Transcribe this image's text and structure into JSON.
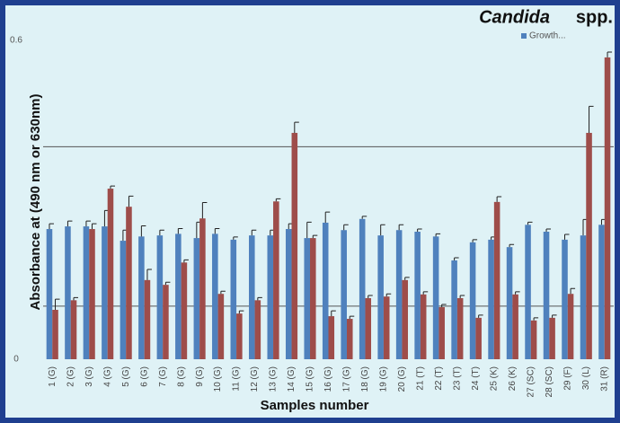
{
  "chart_data": {
    "type": "bar",
    "title": {
      "italic": "Candida",
      "text": "spp."
    },
    "y_label": "Absorbance at (490 nm or 630nm)",
    "x_label": "Samples number",
    "categories": [
      "1 (G)",
      "2 (G)",
      "3 (G)",
      "4 (G)",
      "5 (G)",
      "6 (G)",
      "7 (G)",
      "8 (G)",
      "9 (G)",
      "10 (G)",
      "11 (G)",
      "12 (G)",
      "13 (G)",
      "14 (G)",
      "15 (G)",
      "16 (G)",
      "17 (G)",
      "18 (G)",
      "19 (G)",
      "20 (G)",
      "21 (T)",
      "22 (T)",
      "23 (T)",
      "24 (T)",
      "25 (K)",
      "26 (K)",
      "27 (SC)",
      "28 (SC)",
      "29 (F)",
      "30 (L)",
      "31 (R)"
    ],
    "series": [
      {
        "name": "Growth...",
        "color": "#4f81bd",
        "values": [
          0.245,
          0.25,
          0.25,
          0.25,
          0.223,
          0.231,
          0.233,
          0.236,
          0.228,
          0.236,
          0.225,
          0.233,
          0.233,
          0.245,
          0.228,
          0.257,
          0.243,
          0.264,
          0.233,
          0.243,
          0.24,
          0.231,
          0.186,
          0.22,
          0.225,
          0.211,
          0.253,
          0.24,
          0.225,
          0.233,
          0.253
        ],
        "errors": [
          0.01,
          0.01,
          0.01,
          0.03,
          0.02,
          0.02,
          0.01,
          0.01,
          0.03,
          0.01,
          0.005,
          0.01,
          0.01,
          0.01,
          0.03,
          0.02,
          0.01,
          0.005,
          0.02,
          0.01,
          0.005,
          0.005,
          0.005,
          0.005,
          0.005,
          0.005,
          0.005,
          0.005,
          0.01,
          0.03,
          0.01
        ]
      },
      {
        "color": "#9e4d4a",
        "values": [
          0.093,
          0.111,
          0.245,
          0.321,
          0.287,
          0.149,
          0.14,
          0.182,
          0.265,
          0.123,
          0.086,
          0.111,
          0.297,
          0.426,
          0.228,
          0.081,
          0.076,
          0.115,
          0.118,
          0.149,
          0.122,
          0.098,
          0.115,
          0.078,
          0.296,
          0.122,
          0.073,
          0.078,
          0.123,
          0.426,
          0.568
        ],
        "errors": [
          0.02,
          0.005,
          0.01,
          0.005,
          0.02,
          0.02,
          0.005,
          0.005,
          0.03,
          0.005,
          0.005,
          0.005,
          0.005,
          0.02,
          0.005,
          0.01,
          0.005,
          0.005,
          0.005,
          0.005,
          0.005,
          0.005,
          0.005,
          0.005,
          0.01,
          0.005,
          0.005,
          0.005,
          0.01,
          0.05,
          0.01
        ]
      }
    ],
    "ylim": [
      0,
      0.6
    ],
    "yticks": [
      0,
      0.6
    ],
    "gridlines": [
      0.1,
      0.4
    ],
    "legend": "top-right"
  }
}
